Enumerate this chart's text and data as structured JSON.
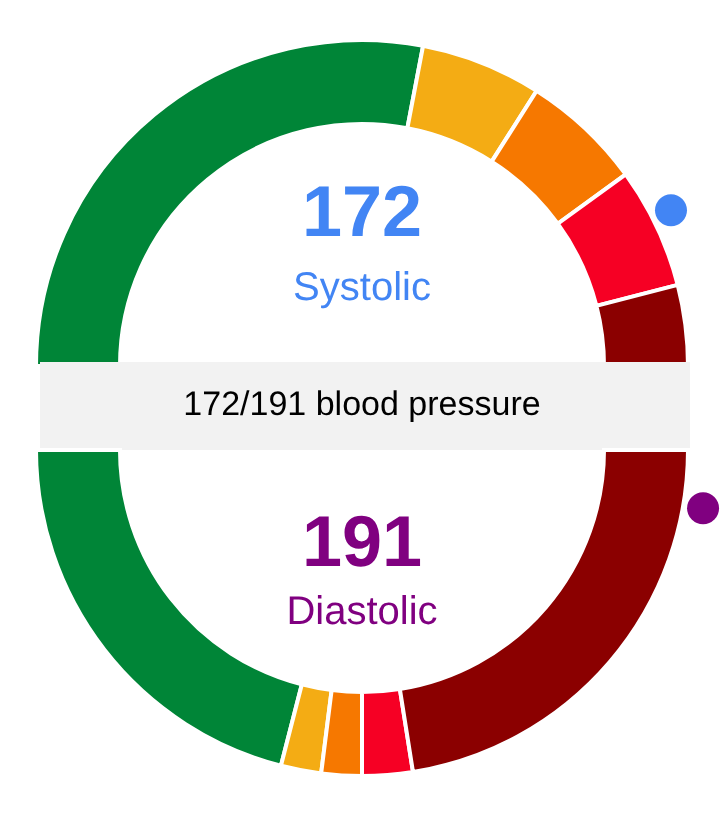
{
  "chart_data": [
    {
      "type": "donut",
      "title": "172",
      "subtitle": "Systolic",
      "annotations": [
        "172/191 blood pressure"
      ],
      "categories": [
        null,
        null,
        null,
        null,
        null
      ],
      "values": [
        56,
        12,
        12,
        12,
        8
      ],
      "colors": [
        "#008537",
        "#f4ac14",
        "#f67800",
        "#f60024",
        "#8b0000"
      ]
    },
    {
      "type": "donut",
      "title": "191",
      "subtitle": "Diastolic",
      "categories": [
        null,
        null,
        null,
        null,
        null
      ],
      "values": [
        42,
        4,
        4,
        5,
        45
      ],
      "colors": [
        "#008537",
        "#f4ac14",
        "#f67800",
        "#f60024",
        "#8b0000"
      ]
    }
  ]
}
